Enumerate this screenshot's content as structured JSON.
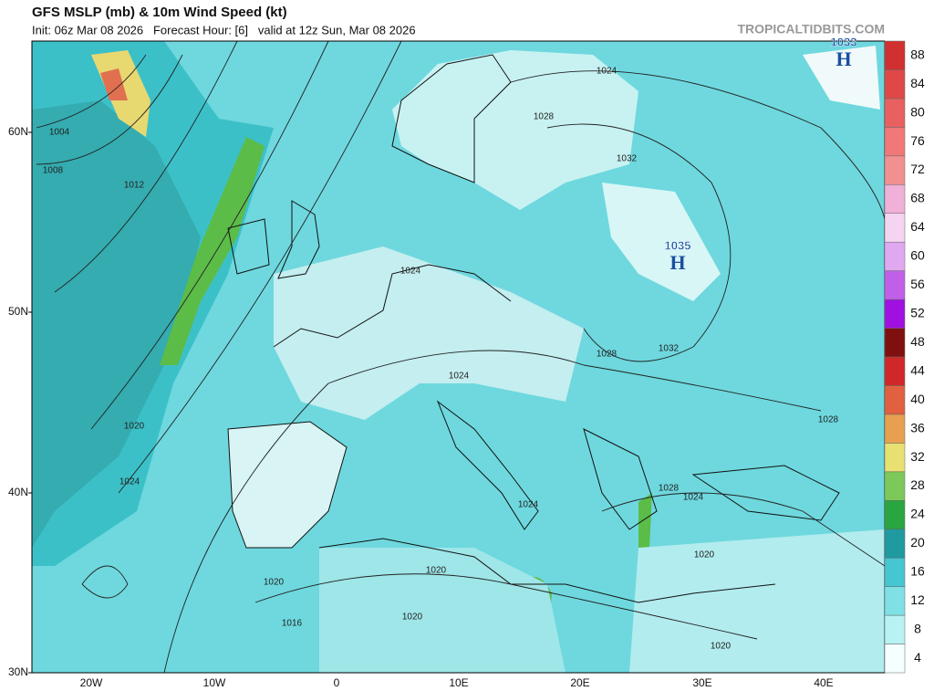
{
  "header": {
    "title": "GFS MSLP (mb) & 10m Wind Speed (kt)",
    "subtitle": "Init: 06z Mar 08 2026   Forecast Hour: [6]   valid at 12z Sun, Mar 08 2026",
    "credit": "TROPICALTIDBITS.COM"
  },
  "map": {
    "lat_labels": [
      "60N",
      "50N",
      "40N",
      "30N"
    ],
    "lon_labels": [
      "20W",
      "10W",
      "0",
      "10E",
      "20E",
      "30E",
      "40E"
    ],
    "pressure_centers": [
      {
        "value": "1033",
        "letter": "H"
      },
      {
        "value": "1035",
        "letter": "H"
      }
    ],
    "isobar_labels": [
      "1004",
      "1008",
      "1012",
      "1020",
      "1024",
      "1024",
      "1028",
      "1032",
      "1024",
      "1024",
      "1028",
      "1032",
      "1028",
      "1028",
      "1024",
      "1024",
      "1020",
      "1020",
      "1020",
      "1020",
      "1016",
      "1020"
    ]
  },
  "colorbar": {
    "labels": [
      "4",
      "8",
      "12",
      "16",
      "20",
      "24",
      "28",
      "32",
      "36",
      "40",
      "44",
      "48",
      "52",
      "56",
      "60",
      "64",
      "68",
      "72",
      "76",
      "80",
      "84",
      "88"
    ],
    "colors": [
      "#f4ffff",
      "#b8f2f2",
      "#7fe0e6",
      "#46c6d0",
      "#1e9aa0",
      "#2aa640",
      "#7cc85a",
      "#e8e070",
      "#e8a050",
      "#e06040",
      "#d02828",
      "#801010",
      "#a010e0",
      "#c060e8",
      "#e0a8f0",
      "#f4d4f0",
      "#f0b0d8",
      "#f09090",
      "#f07878",
      "#e86060",
      "#e04848",
      "#d03030"
    ]
  }
}
